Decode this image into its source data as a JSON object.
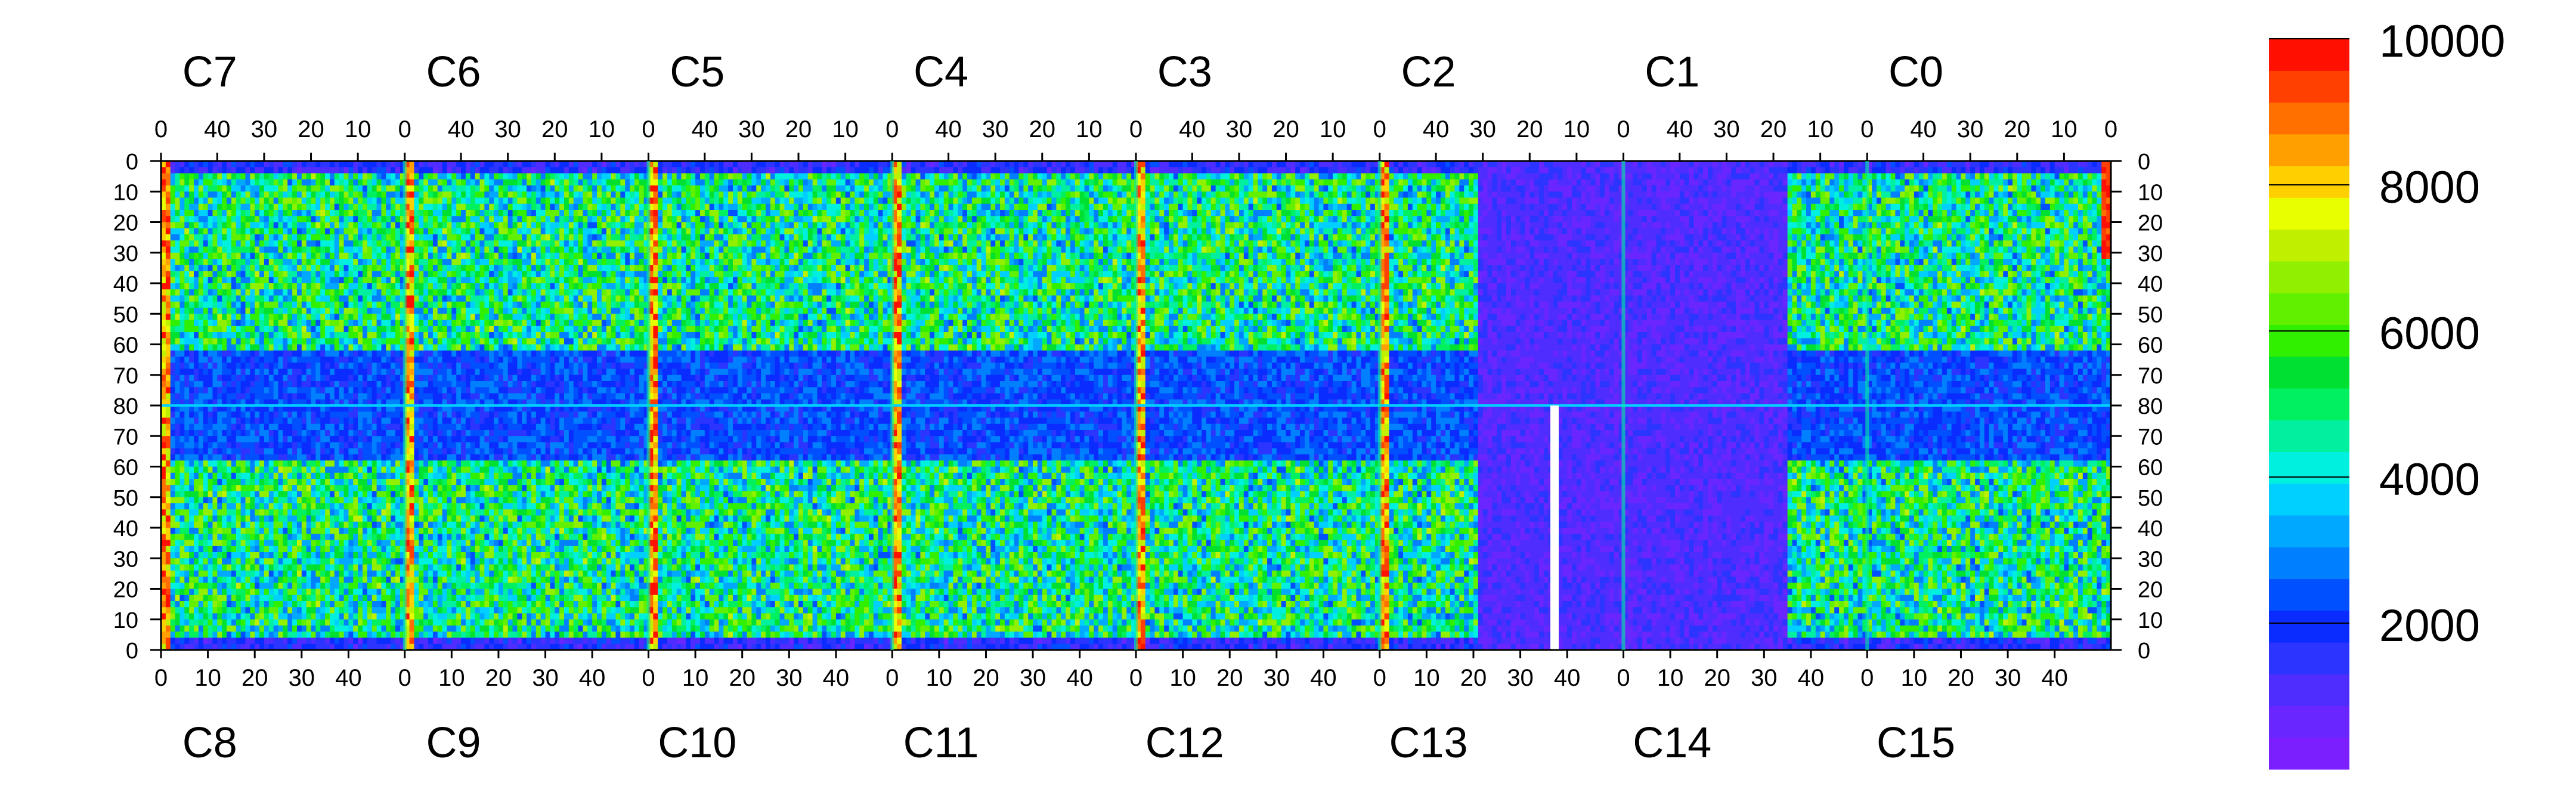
{
  "chart_data": {
    "type": "heatmap",
    "top_chip_labels": [
      "C7",
      "C6",
      "C5",
      "C4",
      "C3",
      "C2",
      "C1",
      "C0"
    ],
    "bottom_chip_labels": [
      "C8",
      "C9",
      "C10",
      "C11",
      "C12",
      "C13",
      "C14",
      "C15"
    ],
    "top_x_tick_labels": [
      "40",
      "30",
      "20",
      "10",
      "0"
    ],
    "bottom_x_tick_labels": [
      "0",
      "10",
      "20",
      "30",
      "40"
    ],
    "left_y_tick_labels": [
      "0",
      "10",
      "20",
      "30",
      "40",
      "50",
      "60",
      "70",
      "80",
      "70",
      "60",
      "50",
      "40",
      "30",
      "20",
      "10",
      "0"
    ],
    "right_y_tick_labels": [
      "0",
      "10",
      "20",
      "30",
      "40",
      "50",
      "60",
      "70",
      "80",
      "70",
      "60",
      "50",
      "40",
      "30",
      "20",
      "10",
      "0"
    ],
    "colorbar": {
      "range": [
        0,
        10000
      ],
      "tick_labels": [
        "2000",
        "4000",
        "6000",
        "8000",
        "10000"
      ],
      "tick_values": [
        2000,
        4000,
        6000,
        8000,
        10000
      ],
      "colors": [
        "#7b1fff",
        "#6a26ff",
        "#4f2dff",
        "#2c34ff",
        "#0a2cff",
        "#0050ff",
        "#0080ff",
        "#00a8ff",
        "#00d0ff",
        "#00f0e0",
        "#00f0a0",
        "#00f060",
        "#00e030",
        "#30f000",
        "#60f000",
        "#90f000",
        "#c0f000",
        "#e8ff00",
        "#ffd000",
        "#ffa000",
        "#ff7000",
        "#ff4000",
        "#ff1000"
      ]
    },
    "chips": 16,
    "columns_per_chip": 52,
    "rows_per_half": 80,
    "description_values": {
      "hot_columns_top": [
        0,
        1,
        2,
        3,
        4,
        5
      ],
      "low_region_chip": "C13/C1",
      "max_value": 10000
    }
  }
}
